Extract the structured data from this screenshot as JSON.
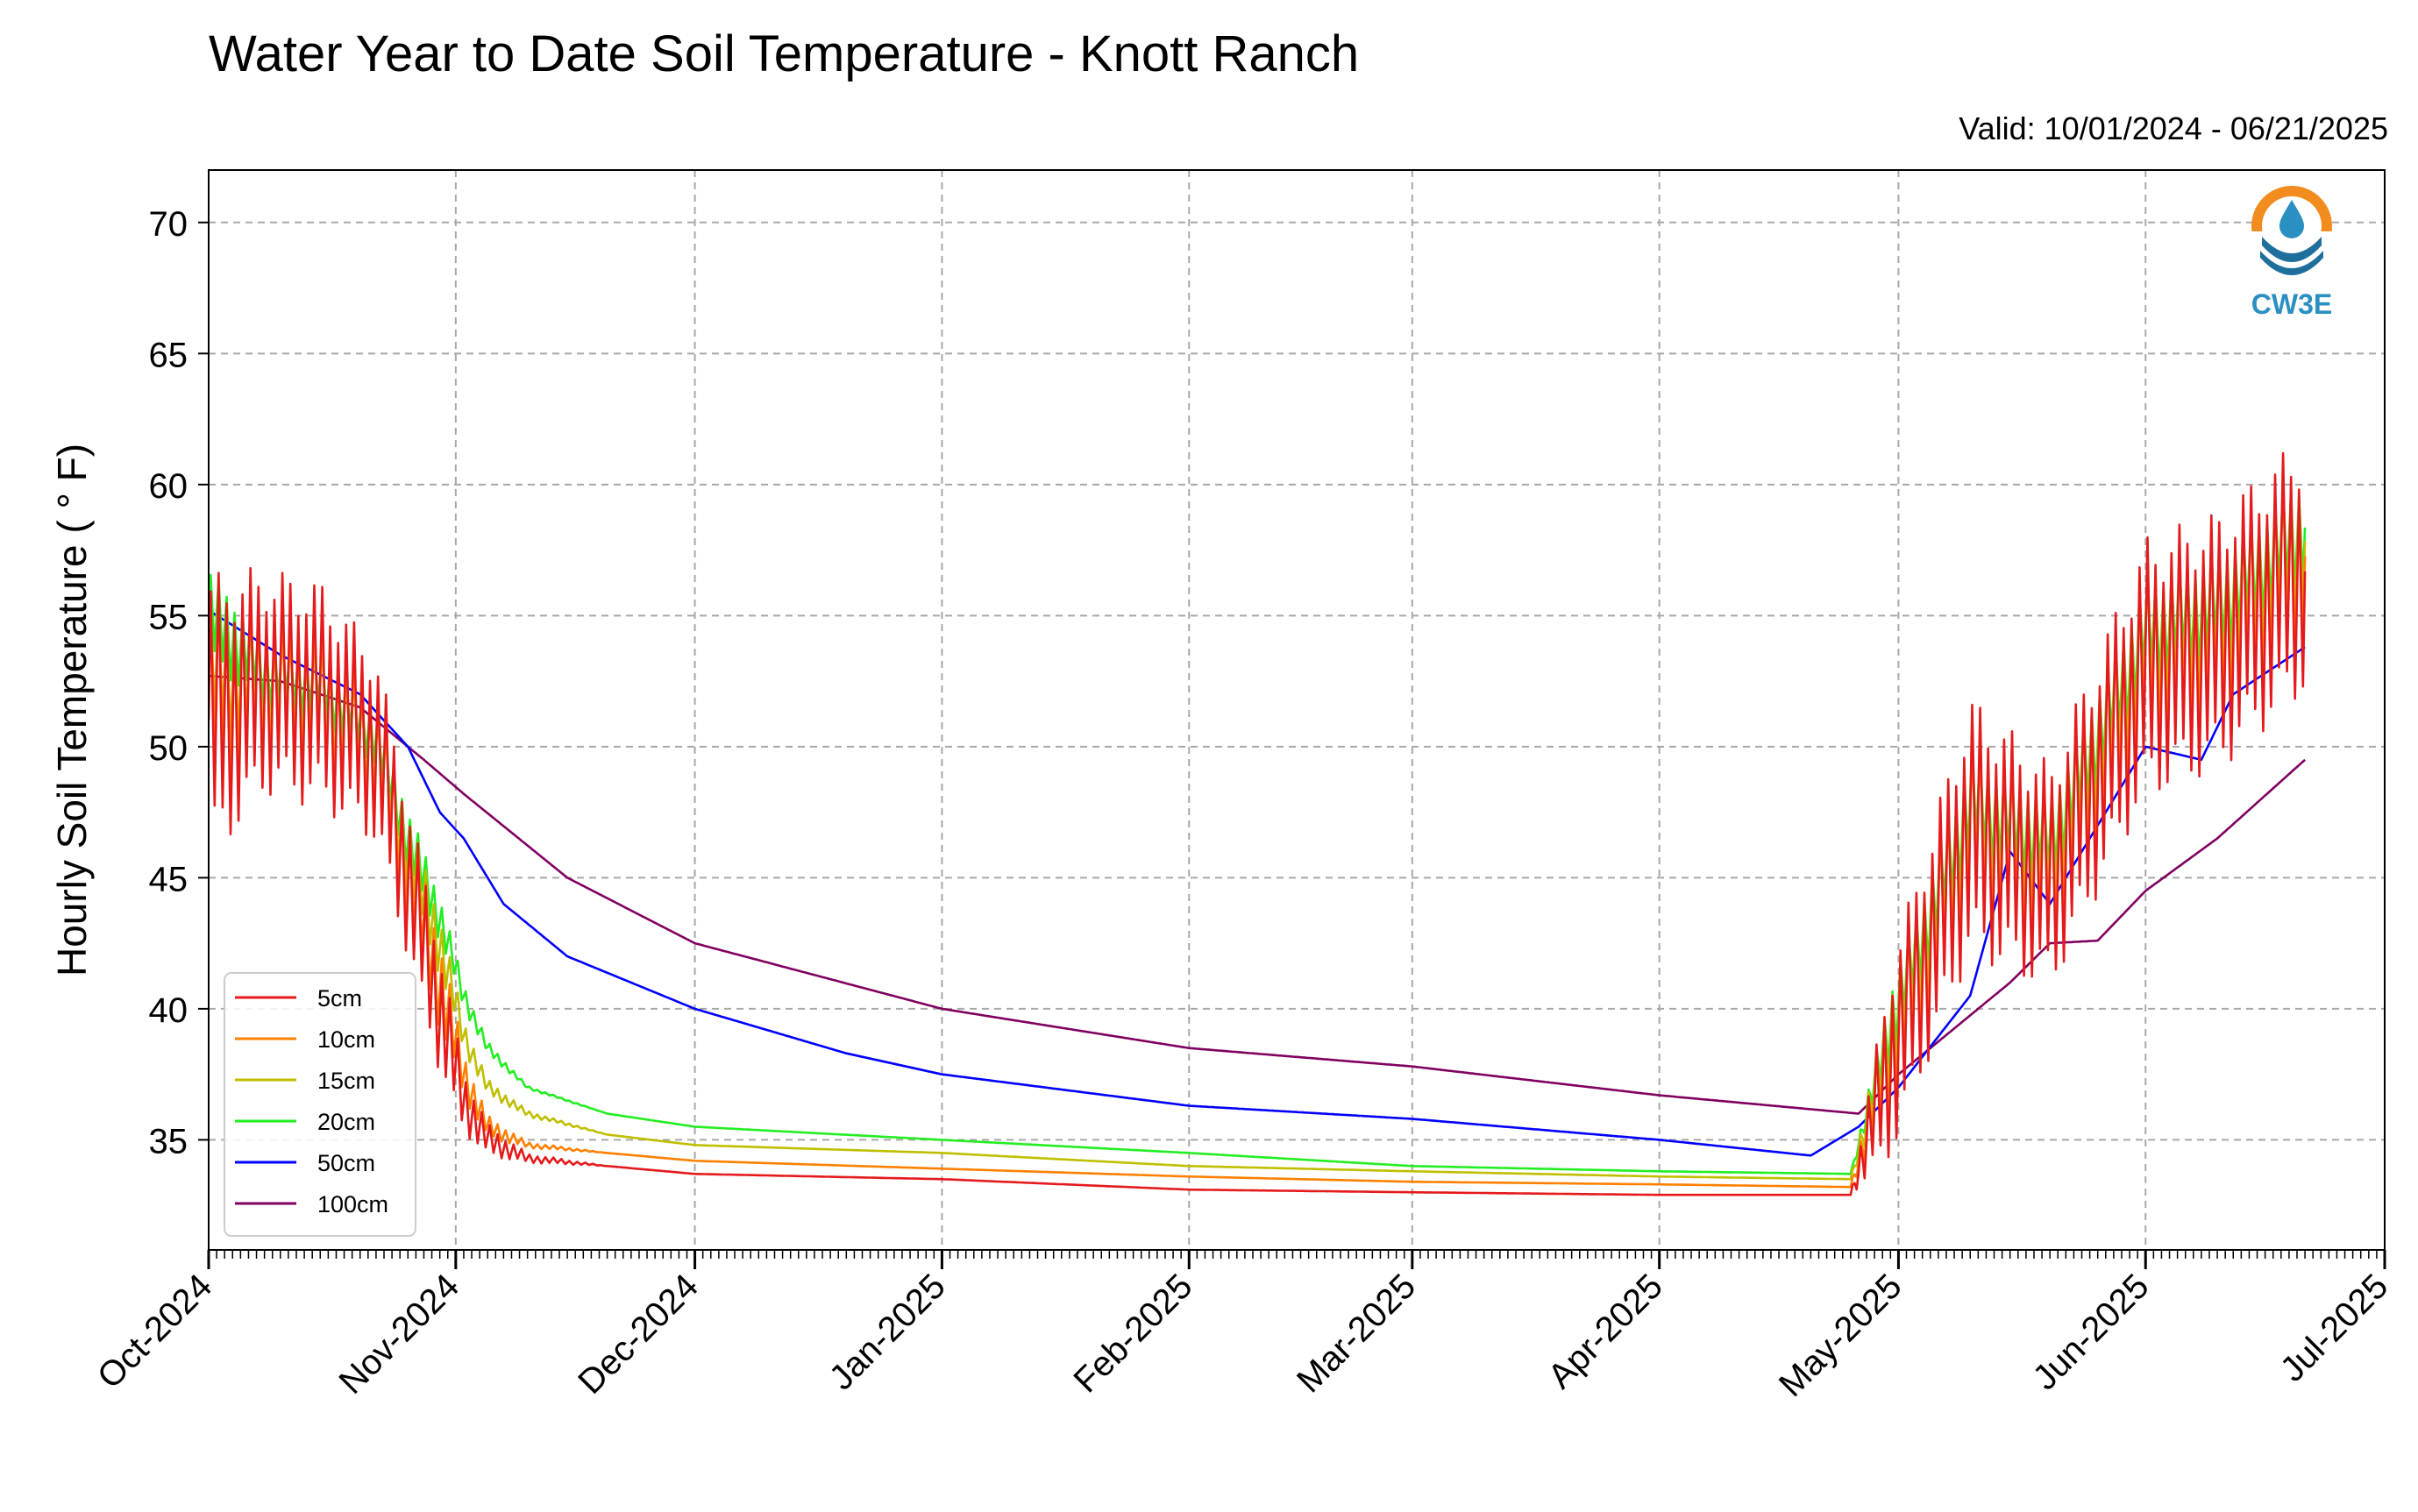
{
  "chart_data": {
    "type": "line",
    "title": "Water Year to Date Soil Temperature - Knott Ranch",
    "subtitle": "Valid: 10/01/2024 - 06/21/2025",
    "ylabel": "Hourly Soil Temperature ( ° F)",
    "xlabel": "",
    "ylim": [
      30.8,
      72
    ],
    "xlim": [
      "2024-10-01",
      "2025-07-01"
    ],
    "x_tick_labels": [
      "Oct-2024",
      "Nov-2024",
      "Dec-2024",
      "Jan-2025",
      "Feb-2025",
      "Mar-2025",
      "Apr-2025",
      "May-2025",
      "Jun-2025",
      "Jul-2025"
    ],
    "x_ticks": [
      "2024-10-01",
      "2024-11-01",
      "2024-12-01",
      "2025-01-01",
      "2025-02-01",
      "2025-03-01",
      "2025-04-01",
      "2025-05-01",
      "2025-06-01",
      "2025-07-01"
    ],
    "y_ticks": [
      35,
      40,
      45,
      50,
      55,
      60,
      65,
      70
    ],
    "grid": true,
    "legend_position": "lower-left",
    "logo_text": "CW3E",
    "series": [
      {
        "name": "5cm",
        "color": "#e41a1c",
        "x": [
          "2024-10-01",
          "2024-10-08",
          "2024-10-15",
          "2024-10-22",
          "2024-10-26",
          "2024-10-30",
          "2024-11-02",
          "2024-11-05",
          "2024-11-10",
          "2024-11-20",
          "2024-12-01",
          "2025-01-01",
          "2025-02-01",
          "2025-03-01",
          "2025-04-01",
          "2025-04-25",
          "2025-04-30",
          "2025-05-10",
          "2025-05-20",
          "2025-06-01",
          "2025-06-10",
          "2025-06-21"
        ],
        "y": [
          51.0,
          52.5,
          52.0,
          50.0,
          45.0,
          40.0,
          36.5,
          35.0,
          34.3,
          34.0,
          33.7,
          33.5,
          33.1,
          33.0,
          32.9,
          32.9,
          38.0,
          47.0,
          45.0,
          53.0,
          54.0,
          57.0
        ],
        "amp": [
          9,
          7,
          7,
          6,
          5,
          4,
          2,
          1,
          0.3,
          0,
          0,
          0,
          0,
          0,
          0,
          0,
          6,
          8,
          7,
          8,
          8,
          8
        ]
      },
      {
        "name": "10cm",
        "color": "#ff8000",
        "x": [
          "2024-10-01",
          "2024-10-08",
          "2024-10-15",
          "2024-10-22",
          "2024-10-26",
          "2024-10-30",
          "2024-11-02",
          "2024-11-05",
          "2024-11-10",
          "2024-11-20",
          "2024-12-01",
          "2025-01-01",
          "2025-02-01",
          "2025-03-01",
          "2025-04-01",
          "2025-04-25",
          "2025-04-30",
          "2025-05-10",
          "2025-05-20",
          "2025-06-01",
          "2025-06-10",
          "2025-06-21"
        ],
        "y": [
          52.5,
          52.5,
          52.0,
          50.0,
          45.5,
          41.0,
          37.5,
          35.5,
          34.8,
          34.5,
          34.2,
          33.9,
          33.6,
          33.4,
          33.3,
          33.2,
          38.5,
          47.0,
          45.5,
          53.5,
          54.5,
          57.5
        ],
        "amp": [
          6,
          5,
          5,
          4,
          3.5,
          3,
          1.5,
          0.7,
          0.2,
          0,
          0,
          0,
          0,
          0,
          0,
          0,
          4.5,
          6,
          5,
          6,
          6,
          6
        ]
      },
      {
        "name": "15cm",
        "color": "#bfbf00",
        "x": [
          "2024-10-01",
          "2024-10-08",
          "2024-10-15",
          "2024-10-22",
          "2024-10-26",
          "2024-10-30",
          "2024-11-02",
          "2024-11-05",
          "2024-11-10",
          "2024-11-20",
          "2024-12-01",
          "2025-01-01",
          "2025-02-01",
          "2025-03-01",
          "2025-04-01",
          "2025-04-25",
          "2025-04-30",
          "2025-05-10",
          "2025-05-20",
          "2025-06-01",
          "2025-06-10",
          "2025-06-21"
        ],
        "y": [
          53.0,
          52.5,
          52.0,
          50.0,
          46.0,
          42.5,
          39.0,
          37.0,
          36.0,
          35.2,
          34.8,
          34.5,
          34.0,
          33.8,
          33.6,
          33.5,
          39.0,
          47.5,
          46.0,
          54.0,
          55.0,
          58.0
        ],
        "amp": [
          4,
          3.5,
          3.5,
          3,
          2.5,
          2,
          1,
          0.5,
          0.2,
          0,
          0,
          0,
          0,
          0,
          0,
          0,
          3.5,
          4.5,
          4,
          4.5,
          4.5,
          4.5
        ]
      },
      {
        "name": "20cm",
        "color": "#22ee22",
        "x": [
          "2024-10-01",
          "2024-10-08",
          "2024-10-15",
          "2024-10-22",
          "2024-10-26",
          "2024-10-30",
          "2024-11-02",
          "2024-11-05",
          "2024-11-10",
          "2024-11-20",
          "2024-12-01",
          "2025-01-01",
          "2025-02-01",
          "2025-03-01",
          "2025-04-01",
          "2025-04-25",
          "2025-04-30",
          "2025-05-10",
          "2025-05-20",
          "2025-06-01",
          "2025-06-10",
          "2025-06-21"
        ],
        "y": [
          55.0,
          53.0,
          52.5,
          50.5,
          46.5,
          43.5,
          40.5,
          38.5,
          37.0,
          36.0,
          35.5,
          35.0,
          34.5,
          34.0,
          33.8,
          33.7,
          39.5,
          48.0,
          46.5,
          54.5,
          55.5,
          58.5
        ],
        "amp": [
          3,
          2.5,
          2.5,
          2,
          2,
          1.5,
          0.8,
          0.4,
          0.1,
          0,
          0,
          0,
          0,
          0,
          0,
          0,
          2.5,
          3.5,
          3,
          3.5,
          3.5,
          3.5
        ]
      },
      {
        "name": "50cm",
        "color": "#0000ff",
        "x": [
          "2024-10-01",
          "2024-10-10",
          "2024-10-20",
          "2024-10-26",
          "2024-10-30",
          "2024-11-02",
          "2024-11-07",
          "2024-11-15",
          "2024-12-01",
          "2024-12-20",
          "2025-01-01",
          "2025-02-01",
          "2025-03-01",
          "2025-04-01",
          "2025-04-20",
          "2025-04-26",
          "2025-05-01",
          "2025-05-10",
          "2025-05-15",
          "2025-05-20",
          "2025-05-25",
          "2025-06-01",
          "2025-06-08",
          "2025-06-12",
          "2025-06-21"
        ],
        "y": [
          55.2,
          53.5,
          52.0,
          50.0,
          47.5,
          46.5,
          44.0,
          42.0,
          40.0,
          38.3,
          37.5,
          36.3,
          35.8,
          35.0,
          34.4,
          35.5,
          37.0,
          40.5,
          46.0,
          44.0,
          46.5,
          50.0,
          49.5,
          52.0,
          53.8
        ],
        "amp": [
          0,
          0,
          0,
          0,
          0,
          0,
          0,
          0,
          0,
          0,
          0,
          0,
          0,
          0,
          0,
          0,
          0,
          0,
          0,
          0,
          0,
          0,
          0,
          0,
          0
        ]
      },
      {
        "name": "100cm",
        "color": "#800060",
        "x": [
          "2024-10-01",
          "2024-10-10",
          "2024-10-20",
          "2024-10-28",
          "2024-11-02",
          "2024-11-15",
          "2024-12-01",
          "2025-01-01",
          "2025-02-01",
          "2025-03-01",
          "2025-04-01",
          "2025-04-26",
          "2025-05-01",
          "2025-05-15",
          "2025-05-20",
          "2025-05-26",
          "2025-06-01",
          "2025-06-10",
          "2025-06-21"
        ],
        "y": [
          52.7,
          52.5,
          51.5,
          49.5,
          48.2,
          45.0,
          42.5,
          40.0,
          38.5,
          37.8,
          36.7,
          36.0,
          37.5,
          41.0,
          42.5,
          42.6,
          44.5,
          46.5,
          49.5
        ],
        "amp": [
          0,
          0,
          0,
          0,
          0,
          0,
          0,
          0,
          0,
          0,
          0,
          0,
          0,
          0,
          0,
          0,
          0,
          0,
          0
        ]
      }
    ]
  }
}
